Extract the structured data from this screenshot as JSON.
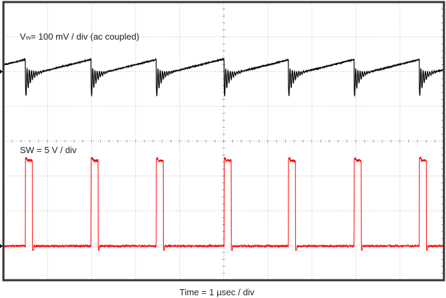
{
  "chart_data": {
    "type": "line",
    "title": "",
    "xlabel": "Time = 1 µsec / div",
    "x_unit": "µs",
    "xlim": [
      0,
      10
    ],
    "divisions": {
      "horizontal": 10,
      "vertical": 8
    },
    "grid": true,
    "switching_edges_us": [
      0.5,
      1.99,
      3.47,
      5.01,
      6.47,
      7.96,
      9.44
    ],
    "series": [
      {
        "name": "VIN",
        "label_main": "V",
        "label_sub": "IN",
        "label_rest": "= 100 mV / div (ac coupled)",
        "unit": "mV",
        "scale_per_div": 100,
        "color": "#000000",
        "ramp_start_mV": -12,
        "ramp_end_mV": 35,
        "ringing_amplitude_mV": 45,
        "ringing_freq_MHz": 20,
        "ringing_decay_us": 0.12
      },
      {
        "name": "SW",
        "label": "SW = 5 V / div",
        "unit": "V",
        "scale_per_div": 5,
        "color": "#ff0000",
        "low_V": 0,
        "high_V": 12.3,
        "pulse_width_us": 0.16
      }
    ]
  }
}
